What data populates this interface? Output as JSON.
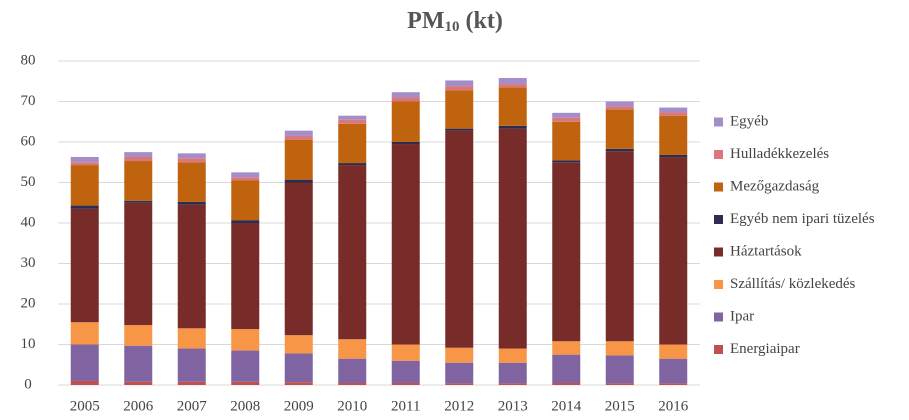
{
  "chart_data": {
    "type": "stacked_bar",
    "title": [
      "PM",
      "10",
      " (kt)"
    ],
    "categories": [
      "2005",
      "2006",
      "2007",
      "2008",
      "2009",
      "2010",
      "2011",
      "2012",
      "2013",
      "2014",
      "2015",
      "2016"
    ],
    "ylim": [
      0,
      80
    ],
    "yticks": [
      0,
      10,
      20,
      30,
      40,
      50,
      60,
      70,
      80
    ],
    "grid": true,
    "legend": "right",
    "series": [
      {
        "name": "Energiaipar",
        "color": "#c0504d",
        "values": [
          1,
          0.8,
          0.8,
          0.8,
          0.7,
          0.5,
          0.5,
          0.4,
          0.4,
          0.5,
          0.4,
          0.4
        ]
      },
      {
        "name": "Ipar",
        "color": "#8064a2",
        "values": [
          9,
          8.9,
          8.2,
          7.7,
          7.1,
          6,
          5.5,
          5.1,
          5.1,
          7,
          6.9,
          6.1
        ]
      },
      {
        "name": "Szállítás/ közlekedés",
        "color": "#f79646",
        "values": [
          5.5,
          5.1,
          5,
          5.3,
          4.5,
          4.8,
          4,
          3.7,
          3.5,
          3.3,
          3.5,
          3.5
        ]
      },
      {
        "name": "Háztartások",
        "color": "#772c2a",
        "values": [
          28,
          30.2,
          30.5,
          26.2,
          37.7,
          43,
          49.5,
          53.6,
          54.3,
          44.2,
          46.9,
          46.2
        ]
      },
      {
        "name": "Egyéb nem ipari tüzelés",
        "color": "#2c2d4f",
        "values": [
          0.8,
          0.5,
          0.7,
          0.7,
          0.7,
          0.5,
          0.5,
          0.5,
          0.7,
          0.5,
          0.6,
          0.6
        ]
      },
      {
        "name": "Mezőgazdaság",
        "color": "#c0630f",
        "values": [
          10,
          9.8,
          9.8,
          9.8,
          9.8,
          9.7,
          10,
          9.5,
          9.5,
          9.5,
          9.7,
          9.7
        ]
      },
      {
        "name": "Hulladékkezelés",
        "color": "#d9777b",
        "values": [
          0.7,
          1,
          1,
          0.8,
          1,
          1,
          1,
          1,
          0.8,
          1,
          0.8,
          0.8
        ]
      },
      {
        "name": "Egyéb",
        "color": "#a58dc8",
        "values": [
          1.3,
          1.2,
          1.2,
          1.2,
          1.3,
          1,
          1.3,
          1.4,
          1.5,
          1.2,
          1.2,
          1.2
        ]
      }
    ]
  }
}
